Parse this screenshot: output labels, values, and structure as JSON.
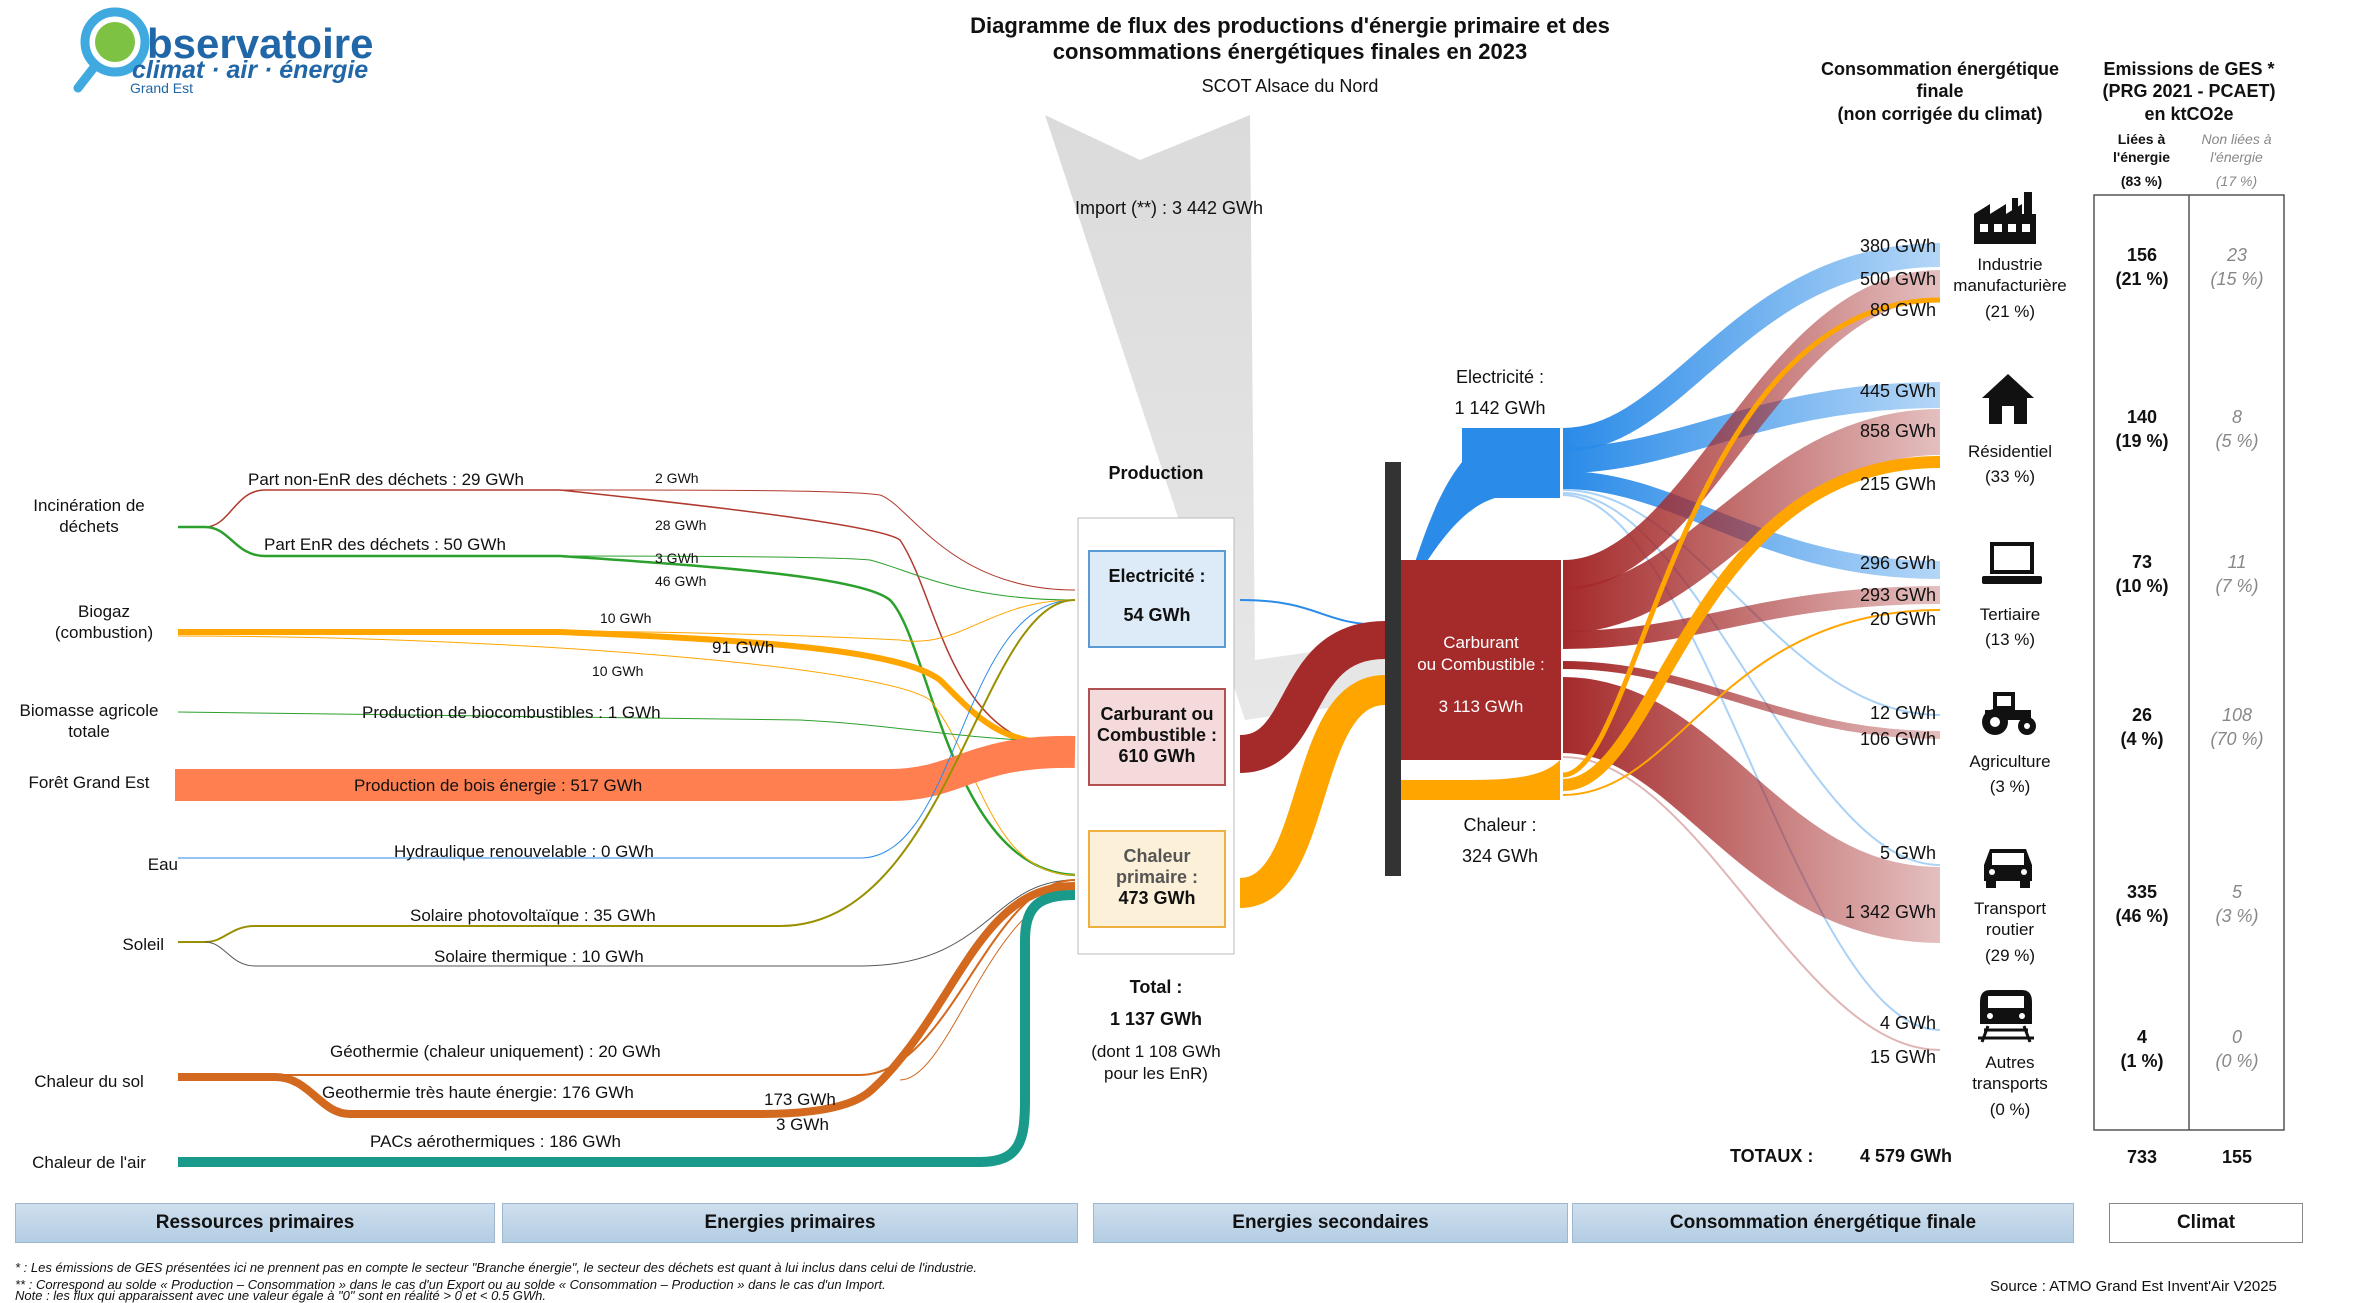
{
  "title": {
    "line1": "Diagramme de flux des productions d'énergie primaire et des",
    "line2": "consommations énergétiques finales en 2023",
    "subtitle": "SCOT Alsace du Nord"
  },
  "logo": {
    "word1": "bservatoire",
    "word2": "climat · air · énergie",
    "word3": "Grand Est"
  },
  "sources": [
    {
      "label": "Incinération de\ndéchets"
    },
    {
      "label": "Biogaz\n(combustion)"
    },
    {
      "label": "Biomasse agricole\ntotale"
    },
    {
      "label": "Forêt Grand Est"
    },
    {
      "label": "Eau"
    },
    {
      "label": "Soleil"
    },
    {
      "label": "Chaleur du sol"
    },
    {
      "label": "Chaleur de l'air"
    }
  ],
  "flow_labels": {
    "non_enr_dechets": "Part non-EnR des déchets :  29 GWh",
    "enr_dechets": "Part EnR des déchets :  50 GWh",
    "biocarburants": "Production de biocombustibles :  1 GWh",
    "bois": "Production de bois énergie :  517 GWh",
    "hydraulique": "Hydraulique renouvelable :  0 GWh",
    "pv": "Solaire photovoltaïque :  35 GWh",
    "solaire_thermique": "Solaire thermique :  10 GWh",
    "geothermie": "Géothermie (chaleur uniquement) :  20 GWh",
    "geothermie_the": "Geothermie très haute énergie:  176 GWh",
    "pac": "PACs aérothermiques :  186 GWh",
    "v2": "2 GWh",
    "v28": "28 GWh",
    "v3": "3 GWh",
    "v46": "46 GWh",
    "v10a": "10 GWh",
    "v91": "91 GWh",
    "v10b": "10 GWh",
    "v173": "173 GWh",
    "v3b": "3 GWh"
  },
  "import_label": "Import (**) : 3 442 GWh",
  "production": {
    "header": "Production",
    "electricite": {
      "l1": "Electricité :",
      "l2": "54 GWh"
    },
    "carburant": {
      "l1": "Carburant ou",
      "l2": "Combustible :",
      "l3": "610 GWh"
    },
    "chaleur": {
      "l1": "Chaleur",
      "l2": "primaire :",
      "l3": "473 GWh"
    },
    "total1": "Total :",
    "total2": "1 137 GWh",
    "total3": "(dont 1 108 GWh",
    "total4": "pour les EnR)"
  },
  "secondary": {
    "elec_l1": "Electricité :",
    "elec_l2": "1 142 GWh",
    "carb_l1": "Carburant",
    "carb_l2": "ou Combustible :",
    "carb_l3": "3 113 GWh",
    "chal_l1": "Chaleur :",
    "chal_l2": "324 GWh"
  },
  "consumption_header": {
    "l1": "Consommation énergétique",
    "l2": "finale",
    "l3": "(non corrigée du climat)"
  },
  "sectors": [
    {
      "name": "Industrie\nmanufacturière",
      "pct": "(21 %)",
      "elec": "380 GWh",
      "carb": "500 GWh",
      "chal": "89 GWh",
      "ges": "156",
      "ges_pct": "(21 %)",
      "nges": "23",
      "nges_pct": "(15 %)",
      "icon": "factory-icon"
    },
    {
      "name": "Résidentiel",
      "pct": "(33 %)",
      "elec": "445 GWh",
      "carb": "858 GWh",
      "chal": "215 GWh",
      "ges": "140",
      "ges_pct": "(19 %)",
      "nges": "8",
      "nges_pct": "(5 %)",
      "icon": "house-icon"
    },
    {
      "name": "Tertiaire",
      "pct": "(13 %)",
      "elec": "296 GWh",
      "carb": "293 GWh",
      "chal": "20 GWh",
      "ges": "73",
      "ges_pct": "(10 %)",
      "nges": "11",
      "nges_pct": "(7 %)",
      "icon": "laptop-icon"
    },
    {
      "name": "Agriculture",
      "pct": "(3 %)",
      "elec": "12 GWh",
      "carb": "106 GWh",
      "chal": "",
      "ges": "26",
      "ges_pct": "(4 %)",
      "nges": "108",
      "nges_pct": "(70 %)",
      "icon": "tractor-icon"
    },
    {
      "name": "Transport\nroutier",
      "pct": "(29 %)",
      "elec": "5 GWh",
      "carb": "1 342 GWh",
      "chal": "",
      "ges": "335",
      "ges_pct": "(46 %)",
      "nges": "5",
      "nges_pct": "(3 %)",
      "icon": "car-icon"
    },
    {
      "name": "Autres\ntransports",
      "pct": "(0 %)",
      "elec": "4 GWh",
      "carb": "15 GWh",
      "chal": "",
      "ges": "4",
      "ges_pct": "(1 %)",
      "nges": "0",
      "nges_pct": "(0 %)",
      "icon": "train-icon"
    }
  ],
  "totaux": {
    "label": "TOTAUX :",
    "value": "4 579 GWh",
    "ges_total": "733",
    "nges_total": "155"
  },
  "ges_header": {
    "l1": "Emissions de GES *",
    "l2": "(PRG 2021 - PCAET)",
    "l3": "en ktCO2e",
    "liees1": "Liées à",
    "liees2": "l'énergie",
    "liees3": "(83 %)",
    "nonliees1": "Non liées à",
    "nonliees2": "l'énergie",
    "nonliees3": "(17 %)"
  },
  "bands": [
    "Ressources primaires",
    "Energies primaires",
    "Energies secondaires",
    "Consommation énergétique finale",
    "Climat"
  ],
  "footnotes": [
    "* : Les émissions de GES présentées ici ne prennent pas en compte le secteur \"Branche énergie\", le secteur des déchets est quant à lui inclus dans celui de l'industrie.",
    "** : Correspond au solde « Production – Consommation » dans le cas d'un Export ou au solde « Consommation – Production » dans le cas d'un Import.",
    "Note : les flux qui apparaissent avec une valeur égale à \"0\" sont en réalité > 0 et < 0.5 GWh."
  ],
  "source_text": "Source : ATMO Grand Est Invent'Air V2025",
  "colors": {
    "elec": "#2a8be8",
    "carb": "#a52a2a",
    "chal": "#ffa500",
    "bois": "#ff7f50",
    "geo": "#d2691e",
    "pac": "#1a9a8a",
    "dechets_red": "#b03a2e",
    "dechets_green": "#2ca02c",
    "pv": "#999000"
  }
}
